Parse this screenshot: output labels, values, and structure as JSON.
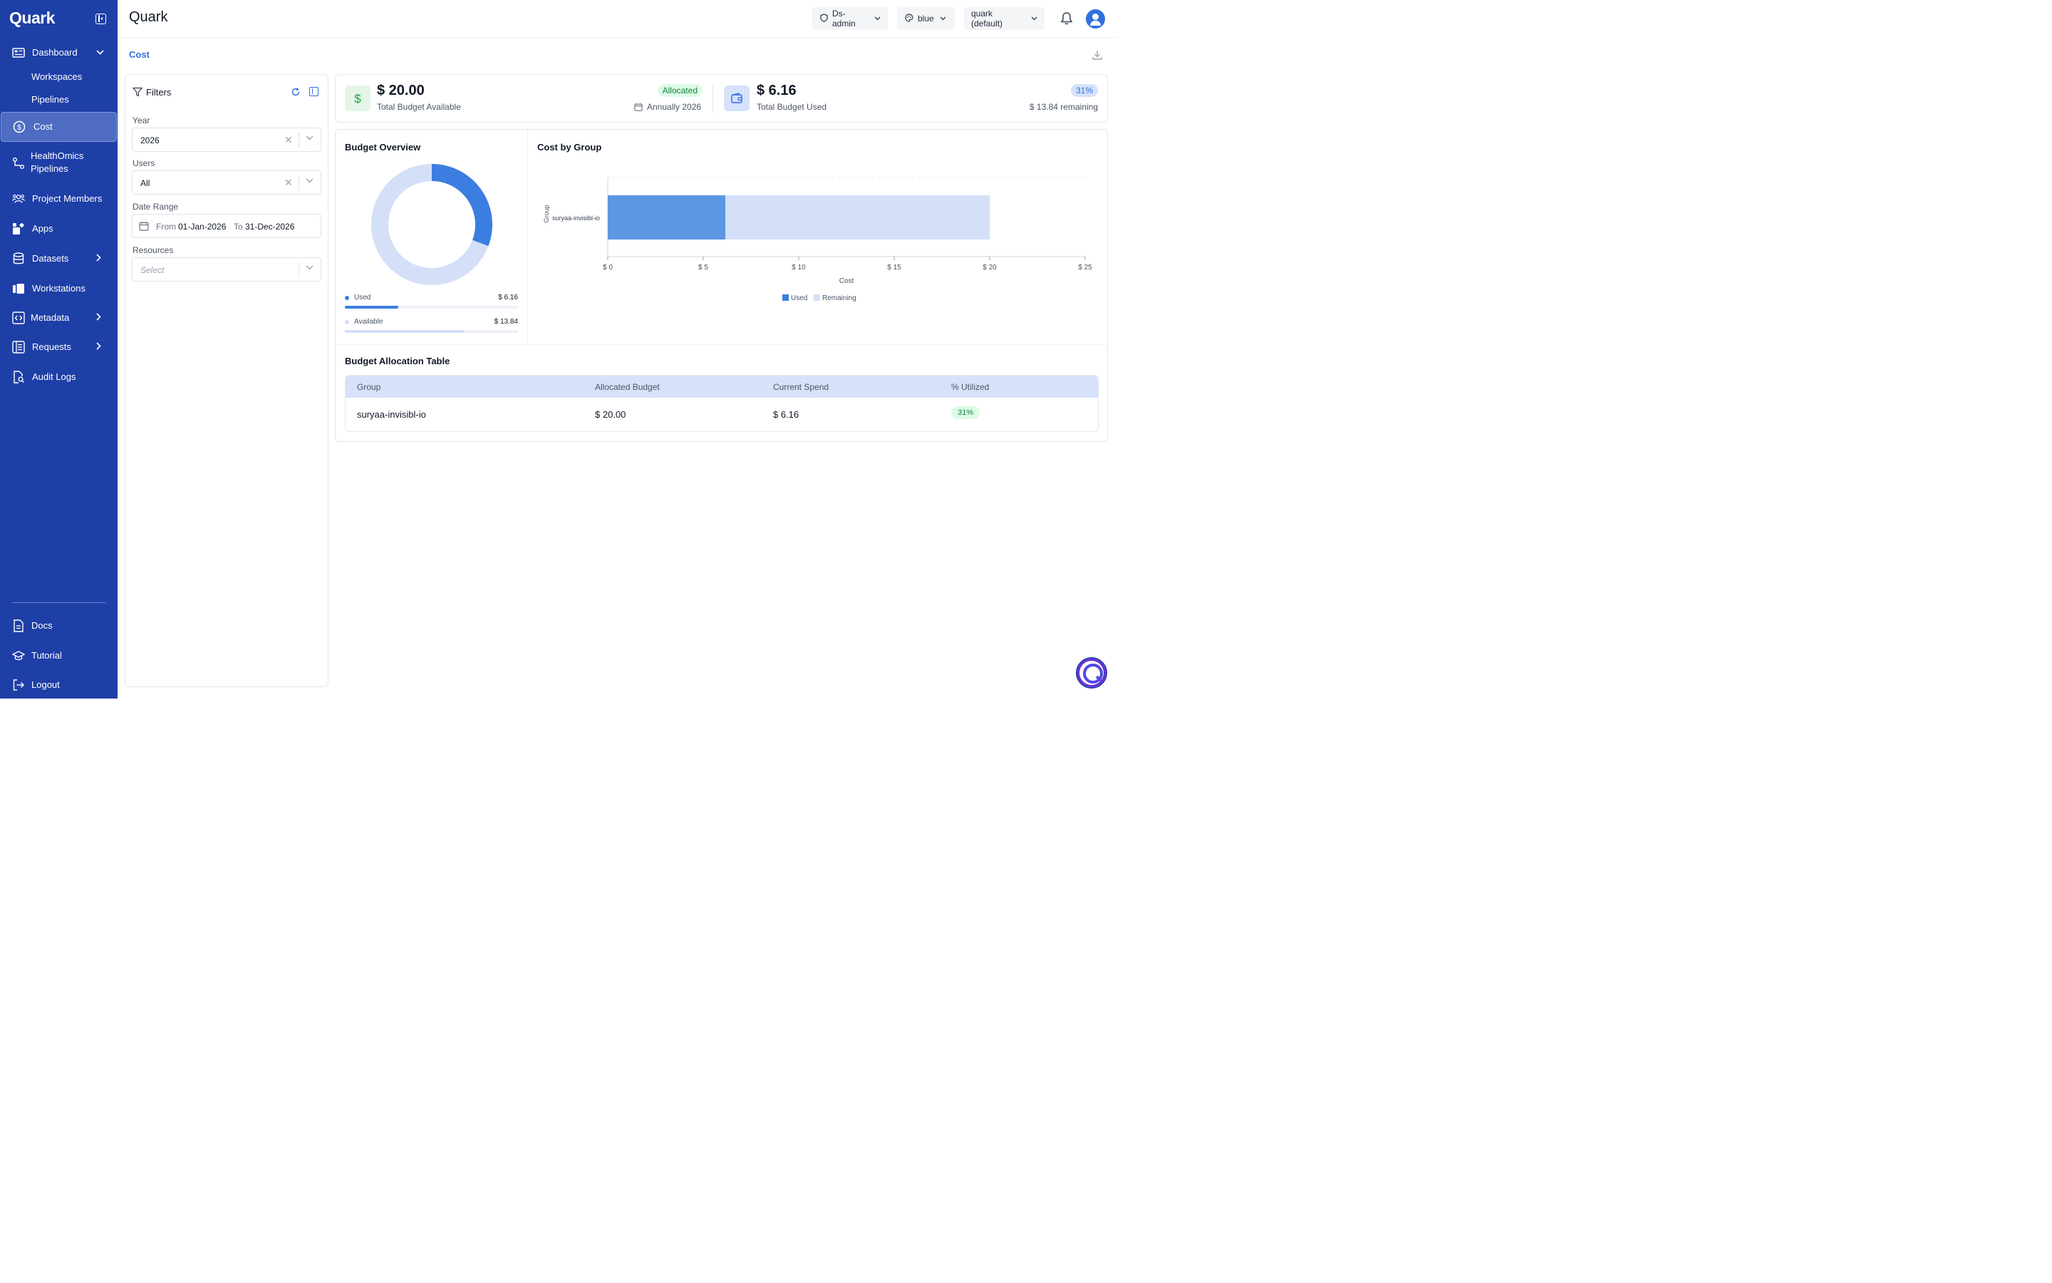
{
  "sidebar": {
    "logo": "Quark",
    "items": [
      {
        "label": "Dashboard"
      },
      {
        "label": "Workspaces"
      },
      {
        "label": "Pipelines"
      },
      {
        "label": "Cost"
      },
      {
        "label": "HealthOmics Pipelines"
      },
      {
        "label": "Project Members"
      },
      {
        "label": "Apps"
      },
      {
        "label": "Datasets"
      },
      {
        "label": "Workstations"
      },
      {
        "label": "Metadata"
      },
      {
        "label": "Requests"
      },
      {
        "label": "Audit Logs"
      }
    ],
    "footer": [
      {
        "label": "Docs"
      },
      {
        "label": "Tutorial"
      },
      {
        "label": "Logout"
      }
    ],
    "healthomics_line1": "HealthOmics",
    "healthomics_line2": "Pipelines"
  },
  "header": {
    "title": "Quark",
    "role": "Ds-admin",
    "theme": "blue",
    "project": "quark (default)"
  },
  "page": {
    "title": "Cost"
  },
  "filters": {
    "title": "Filters",
    "year_label": "Year",
    "year_value": "2026",
    "users_label": "Users",
    "users_value": "All",
    "date_label": "Date Range",
    "from_label": "From",
    "from_value": "01-Jan-2026",
    "to_label": "To",
    "to_value": "31-Dec-2026",
    "resources_label": "Resources",
    "resources_placeholder": "Select"
  },
  "kpis": {
    "budget_value": "$ 20.00",
    "budget_label": "Total Budget Available",
    "budget_badge": "Allocated",
    "budget_period": "Annually 2026",
    "used_value": "$ 6.16",
    "used_label": "Total Budget Used",
    "used_badge": "31%",
    "used_remaining": "$ 13.84 remaining"
  },
  "budget_overview": {
    "title": "Budget Overview",
    "used_label": "Used",
    "used_value": "$ 6.16",
    "used_fraction": 0.308,
    "available_label": "Available",
    "available_value": "$ 13.84",
    "available_fraction": 0.692
  },
  "cost_by_group": {
    "title": "Cost by Group"
  },
  "chart_data": [
    {
      "type": "pie",
      "title": "Budget Overview",
      "categories": [
        "Used",
        "Available"
      ],
      "values": [
        6.16,
        13.84
      ]
    },
    {
      "type": "bar",
      "orientation": "horizontal",
      "stacked": true,
      "title": "Cost by Group",
      "categories": [
        "suryaa-invisibl-io"
      ],
      "series": [
        {
          "name": "Used",
          "values": [
            6.16
          ]
        },
        {
          "name": "Remaining",
          "values": [
            13.84
          ]
        }
      ],
      "xlabel": "Cost",
      "ylabel": "Group",
      "xlim": [
        0,
        25
      ],
      "xticks": [
        "$ 0",
        "$ 5",
        "$ 10",
        "$ 15",
        "$ 20",
        "$ 25"
      ],
      "legend": "bottom"
    }
  ],
  "table": {
    "title": "Budget Allocation Table",
    "headers": [
      "Group",
      "Allocated Budget",
      "Current Spend",
      "% Utilized"
    ],
    "rows": [
      {
        "group": "suryaa-invisibl-io",
        "allocated": "$ 20.00",
        "spend": "$ 6.16",
        "utilized": "31%"
      }
    ]
  },
  "colors": {
    "sidebar": "#1e3fa6",
    "accent": "#2f6fe0",
    "used": "#3b7de0",
    "remaining": "#d3e0f8"
  }
}
